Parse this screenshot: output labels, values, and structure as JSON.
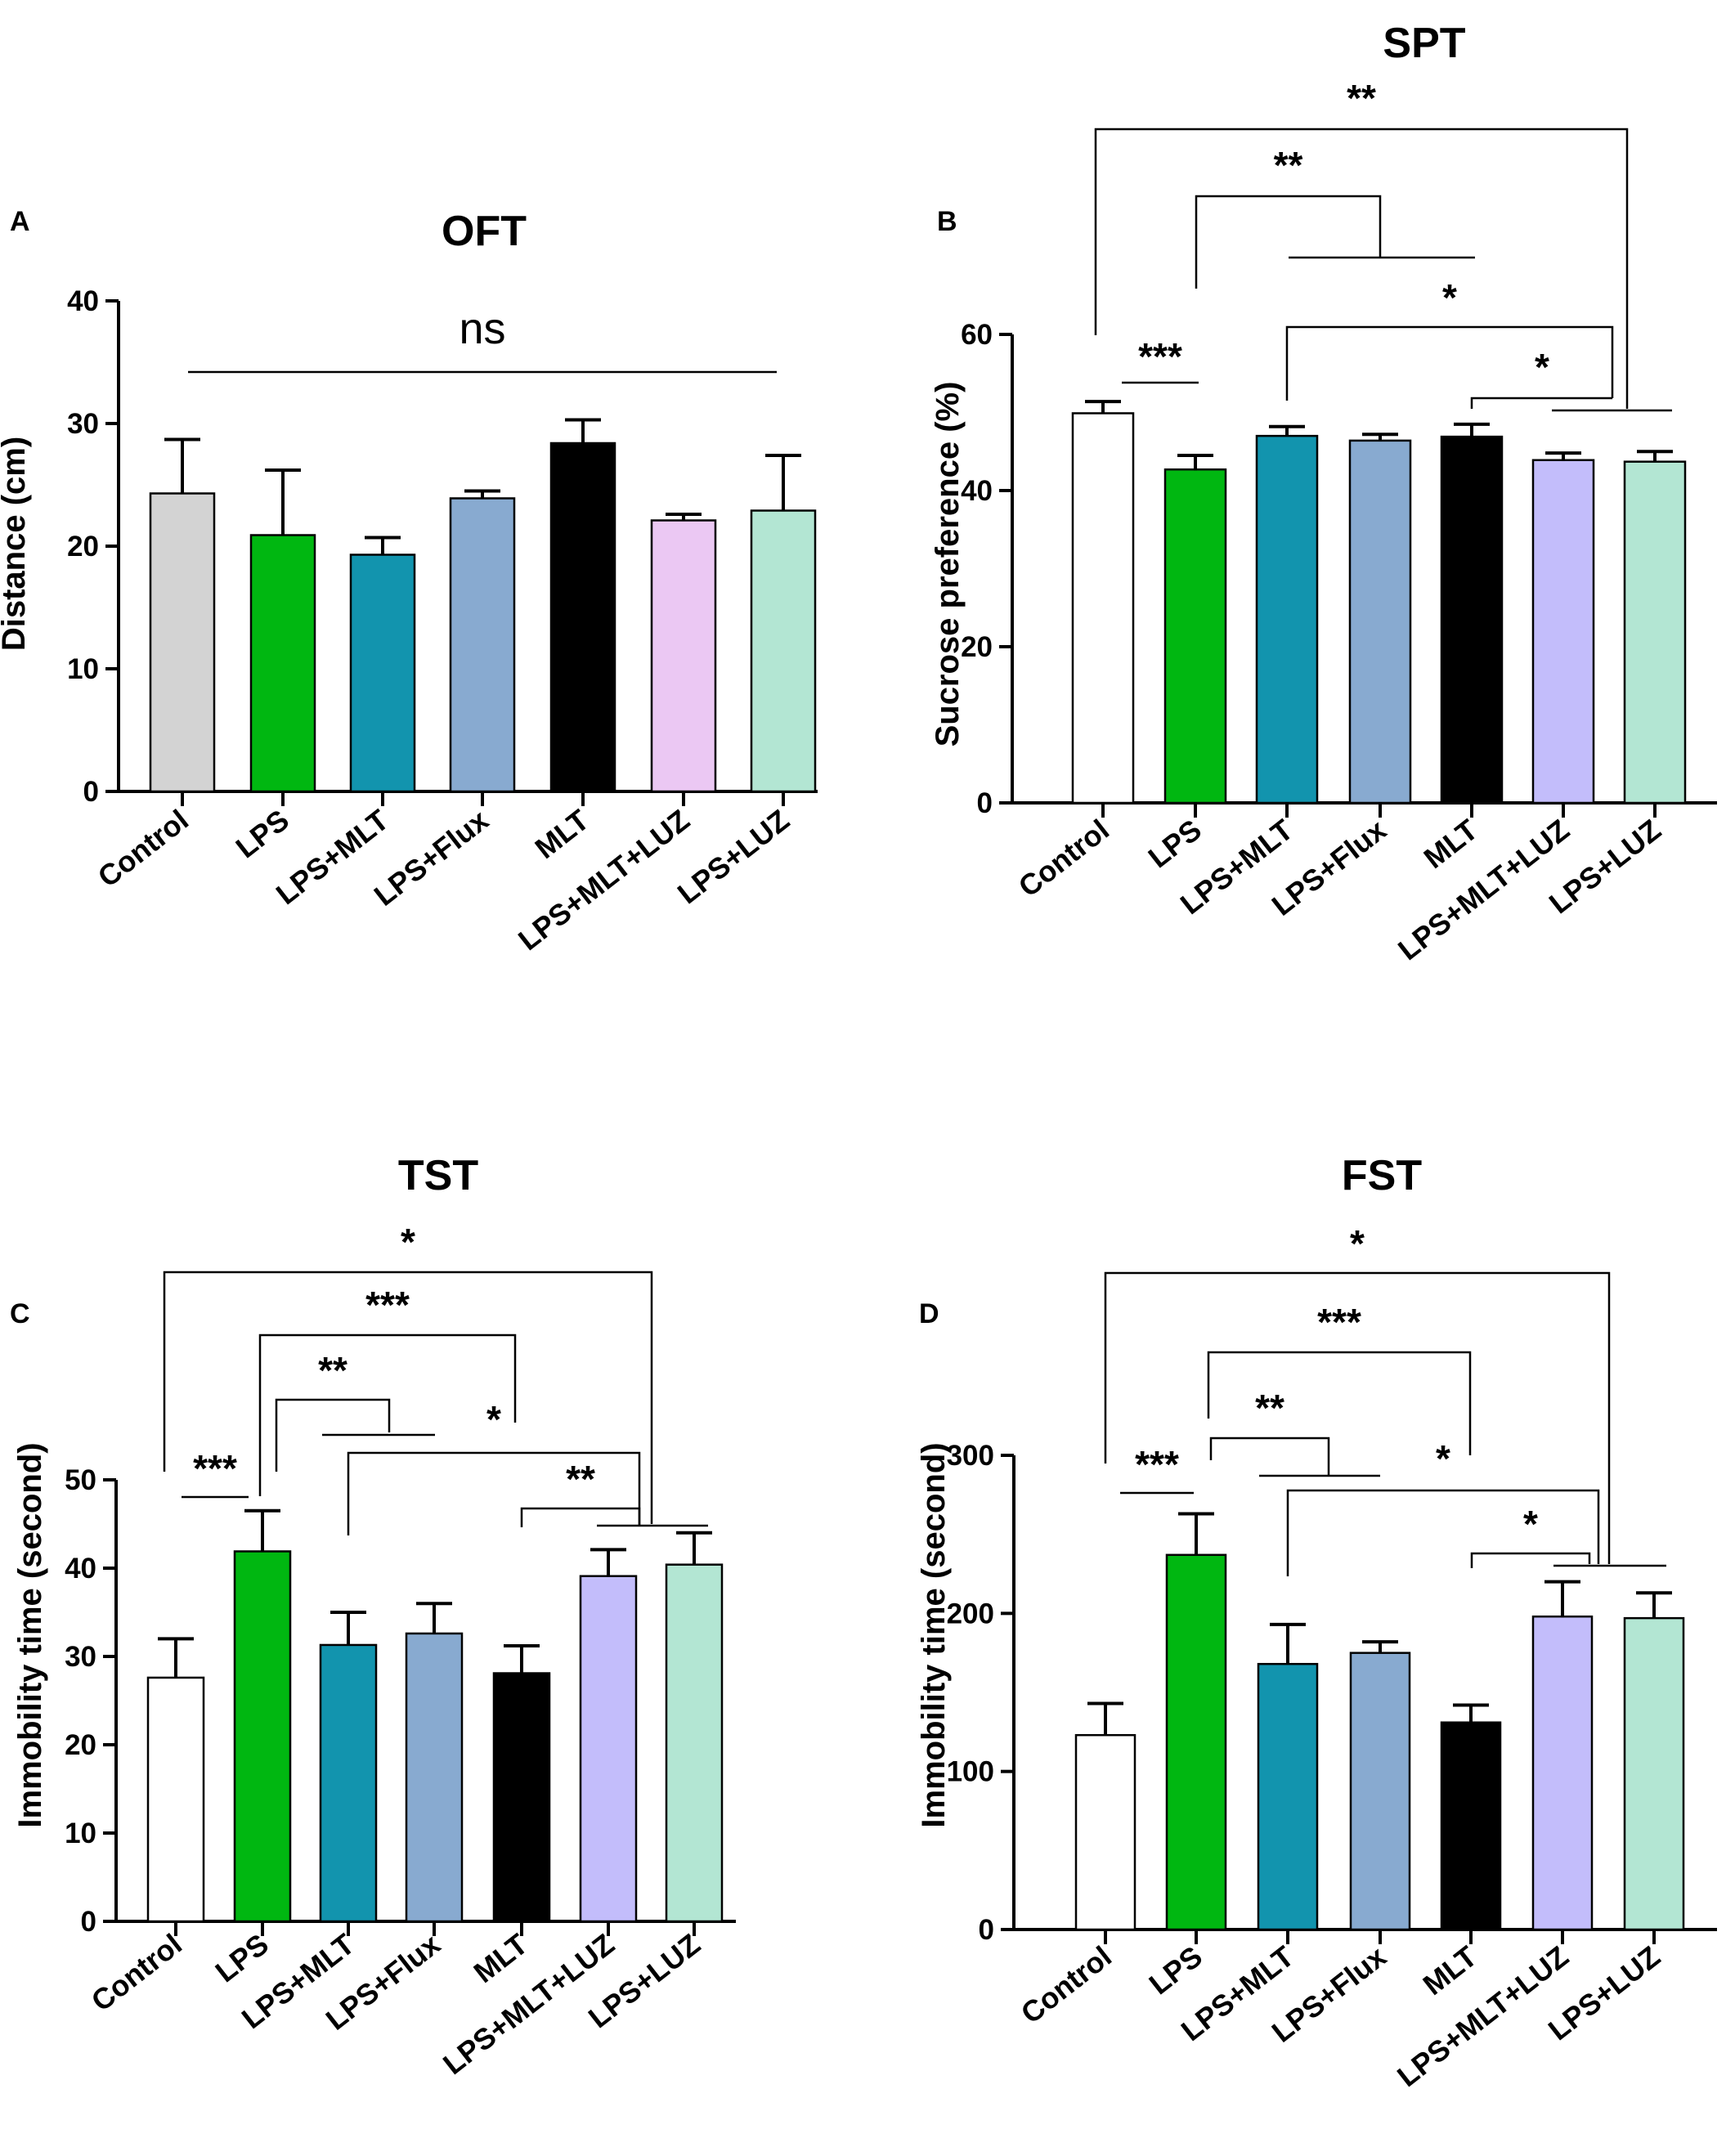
{
  "chart_data": [
    {
      "panel": "A",
      "type": "bar",
      "title": "OFT",
      "xlabel": "",
      "ylabel": "Distance (cm)",
      "ylim": [
        0,
        40
      ],
      "yticks": [
        0,
        10,
        20,
        30,
        40
      ],
      "categories": [
        "Control",
        "LPS",
        "LPS+MLT",
        "LPS+Flux",
        "MLT",
        "LPS+MLT+LUZ",
        "LPS+LUZ"
      ],
      "values": [
        24.3,
        20.9,
        19.3,
        23.9,
        28.4,
        22.1,
        22.9
      ],
      "errors": [
        4.4,
        5.3,
        1.4,
        0.6,
        1.9,
        0.5,
        4.5
      ],
      "colors": [
        "#d3d3d3",
        "#00b711",
        "#1294ae",
        "#88aad0",
        "#000000",
        "#ebc8f3",
        "#b3e6d3"
      ],
      "annotations": [
        {
          "label": "ns",
          "from": 0,
          "to": 6
        }
      ]
    },
    {
      "panel": "B",
      "type": "bar",
      "title": "SPT",
      "xlabel": "",
      "ylabel": "Sucrose preference (%)",
      "ylim": [
        0,
        60
      ],
      "yticks": [
        0,
        20,
        40,
        60
      ],
      "categories": [
        "Control",
        "LPS",
        "LPS+MLT",
        "LPS+Flux",
        "MLT",
        "LPS+MLT+LUZ",
        "LPS+LUZ"
      ],
      "values": [
        49.9,
        42.7,
        47.0,
        46.4,
        46.9,
        43.9,
        43.7
      ],
      "errors": [
        1.5,
        1.8,
        1.2,
        0.8,
        1.6,
        0.9,
        1.3
      ],
      "colors": [
        "#ffffff",
        "#00b711",
        "#1294ae",
        "#88aad0",
        "#000000",
        "#c3bdfb",
        "#b3e6d3"
      ],
      "annotations": [
        {
          "label": "***",
          "from": 0,
          "to": 1
        },
        {
          "label": "*",
          "from": 4,
          "to": "5-6"
        },
        {
          "label": "*",
          "from": 2,
          "to": "5-6"
        },
        {
          "label": "**",
          "from": 1,
          "to": "2-4"
        },
        {
          "label": "**",
          "from": 0,
          "to": "5-6"
        }
      ]
    },
    {
      "panel": "C",
      "type": "bar",
      "title": "TST",
      "xlabel": "",
      "ylabel": "Immobility time (second)",
      "ylim": [
        0,
        50
      ],
      "yticks": [
        0,
        10,
        20,
        30,
        40,
        50
      ],
      "categories": [
        "Control",
        "LPS",
        "LPS+MLT",
        "LPS+Flux",
        "MLT",
        "LPS+MLT+LUZ",
        "LPS+LUZ"
      ],
      "values": [
        27.6,
        41.9,
        31.3,
        32.6,
        28.1,
        39.1,
        40.4
      ],
      "errors": [
        4.4,
        4.6,
        3.7,
        3.4,
        3.1,
        3.0,
        3.6
      ],
      "colors": [
        "#ffffff",
        "#00b711",
        "#1294ae",
        "#88aad0",
        "#000000",
        "#c3bdfb",
        "#b3e6d3"
      ],
      "annotations": [
        {
          "label": "***",
          "from": 0,
          "to": 1
        },
        {
          "label": "**",
          "from": 4,
          "to": "5-6"
        },
        {
          "label": "*",
          "from": 2,
          "to": "5-6"
        },
        {
          "label": "**",
          "from": 1,
          "to": "2-3"
        },
        {
          "label": "***",
          "from": 1,
          "to": 4
        },
        {
          "label": "*",
          "from": 0,
          "to": "5-6"
        }
      ]
    },
    {
      "panel": "D",
      "type": "bar",
      "title": "FST",
      "xlabel": "",
      "ylabel": "Immobility time (second)",
      "ylim": [
        0,
        300
      ],
      "yticks": [
        0,
        100,
        200,
        300
      ],
      "categories": [
        "Control",
        "LPS",
        "LPS+MLT",
        "LPS+Flux",
        "MLT",
        "LPS+MLT+LUZ",
        "LPS+LUZ"
      ],
      "values": [
        123,
        237,
        168,
        175,
        131,
        198,
        197
      ],
      "errors": [
        20,
        26,
        25,
        7,
        11,
        22,
        16
      ],
      "colors": [
        "#ffffff",
        "#00b711",
        "#1294ae",
        "#88aad0",
        "#000000",
        "#c3bdfb",
        "#b3e6d3"
      ],
      "annotations": [
        {
          "label": "***",
          "from": 0,
          "to": 1
        },
        {
          "label": "*",
          "from": 4,
          "to": "5-6"
        },
        {
          "label": "*",
          "from": 2,
          "to": "5-6"
        },
        {
          "label": "**",
          "from": 1,
          "to": "2-3"
        },
        {
          "label": "***",
          "from": 1,
          "to": 4
        },
        {
          "label": "*",
          "from": 0,
          "to": "5-6"
        }
      ]
    }
  ]
}
